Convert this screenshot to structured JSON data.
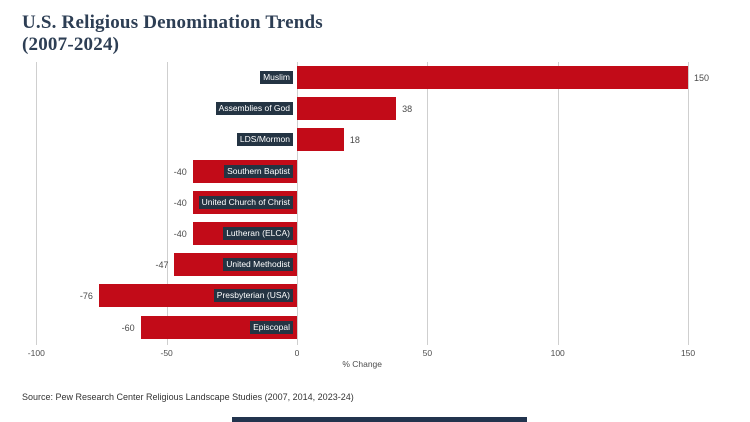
{
  "header": {
    "title_line1": "U.S. Religious Denomination Trends",
    "title_line2": "(2007-2024)"
  },
  "footer": {
    "source": "Source: Pew Research Center Religious Landscape Studies (2007, 2014, 2023-24)"
  },
  "colors": {
    "bar": "#c20b18",
    "chip_bg": "#243443",
    "title_text": "#2d3e54",
    "grid": "#cfcfcf",
    "value_text": "#4a4a4a",
    "bottom_bar": "#22344e"
  },
  "chart_data": {
    "type": "bar",
    "orientation": "horizontal",
    "title": "U.S. Religious Denomination Trends (2007-2024)",
    "categories": [
      "Muslim",
      "Assemblies of God",
      "LDS/Mormon",
      "Southern Baptist",
      "United Church of Christ",
      "Lutheran (ELCA)",
      "United Methodist",
      "Presbyterian (USA)",
      "Episcopal"
    ],
    "values": [
      150,
      38,
      18,
      -40,
      -40,
      -40,
      -47,
      -76,
      -60
    ],
    "value_labels": [
      "150",
      "38",
      "18",
      "-40",
      "-40",
      "-40",
      "-47",
      "-76",
      "-60"
    ],
    "xlabel": "% Change",
    "xlim": [
      -100,
      150
    ],
    "xticks": [
      -100,
      -50,
      0,
      50,
      100,
      150
    ],
    "xtick_labels": [
      "-100",
      "-50",
      "0",
      "50",
      "100",
      "150"
    ],
    "grid": true,
    "legend": "none",
    "bar_color": "#c20b18",
    "category_label_style": "white-on-navy-chip-right-aligned-at-zero",
    "value_label_position": "outside-bar-end"
  }
}
